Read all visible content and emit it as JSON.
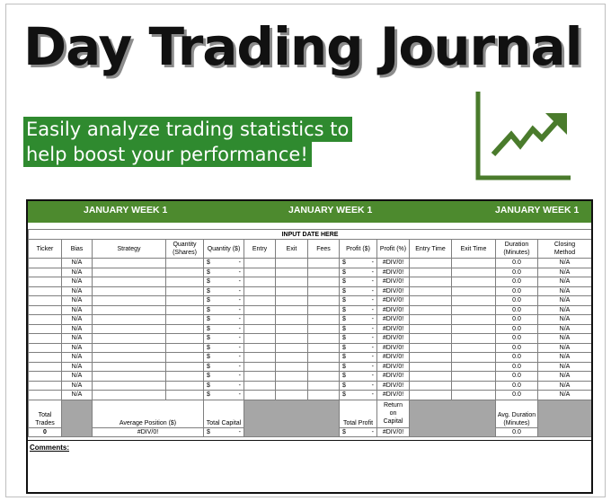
{
  "title": "Day Trading Journal",
  "subtitle_lines": [
    "Easily analyze trading statistics to",
    "help boost your performance!"
  ],
  "colors": {
    "green_bar": "#4d8a2e",
    "subtitle_bg": "#2f8a2f",
    "icon_green": "#4a7b2c",
    "gray_cell": "#a6a6a6"
  },
  "icon": "trending-up-chart-icon",
  "weeks": [
    "JANUARY WEEK 1",
    "JANUARY WEEK 1",
    "JANUARY WEEK 1"
  ],
  "input_date_label": "INPUT DATE HERE",
  "columns": {
    "ticker": "Ticker",
    "bias": "Bias",
    "strategy": "Strategy",
    "quantity_shares": [
      "Quantity",
      "(Shares)"
    ],
    "quantity_dollars": "Quantity ($)",
    "entry": "Entry",
    "exit": "Exit",
    "fees": "Fees",
    "profit_dollars": "Profit ($)",
    "profit_percent": "Profit (%)",
    "entry_time": "Entry Time",
    "exit_time": "Exit Time",
    "duration": [
      "Duration",
      "(Minutes)"
    ],
    "closing_method": [
      "Closing",
      "Method"
    ]
  },
  "row_values": {
    "bias": "N/A",
    "quantity": {
      "symbol": "$",
      "value": "-"
    },
    "profit": {
      "symbol": "$",
      "value": "-"
    },
    "profit_percent": "#DIV/0!",
    "duration": "0.0",
    "closing_method": "N/A",
    "row_count": 15
  },
  "summary": {
    "total_trades_label": [
      "Total",
      "Trades"
    ],
    "total_trades_value": "0",
    "avg_position_label": "Average Position ($)",
    "avg_position_value": "#DIV/0!",
    "total_capital_label": "Total Capital",
    "total_capital_value": {
      "symbol": "$",
      "value": "-"
    },
    "total_profit_label": "Total Profit",
    "total_profit_value": {
      "symbol": "$",
      "value": "-"
    },
    "return_on_capital_label": [
      "Return",
      "on",
      "Capital"
    ],
    "return_on_capital_value": "#DIV/0!",
    "avg_duration_label": [
      "Avg. Duration",
      "(Minutes)"
    ],
    "avg_duration_value": "0.0"
  },
  "comments_label": "Comments:"
}
